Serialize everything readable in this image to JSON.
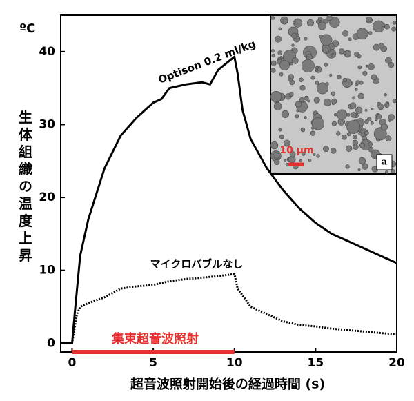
{
  "chart_data": {
    "type": "line",
    "y_unit_label": "ºC",
    "ylabel": "生体組織の温度上昇",
    "xlabel": "超音波照射開始後の経過時間 (s)",
    "xlim": [
      -0.7,
      20
    ],
    "ylim": [
      -1.2,
      45
    ],
    "xticks": [
      0,
      5,
      10,
      15,
      20
    ],
    "yticks": [
      0,
      10,
      20,
      30,
      40
    ],
    "grid": false,
    "series": [
      {
        "name": "Optison 0.2 ml/kg",
        "color": "#000000",
        "style": "solid",
        "x": [
          -0.7,
          0,
          0.2,
          0.5,
          1,
          2,
          3,
          4,
          5,
          5.5,
          6,
          7,
          8,
          8.5,
          9,
          10,
          10.2,
          10.5,
          11,
          12,
          13,
          14,
          15,
          16,
          17,
          18,
          19,
          20
        ],
        "values": [
          0,
          0,
          5,
          12,
          17,
          24,
          28.5,
          31,
          33,
          33.5,
          35,
          35.5,
          35.8,
          35.5,
          37.5,
          39.3,
          37,
          32,
          28,
          24,
          21,
          18.5,
          16.5,
          15,
          14,
          13,
          12,
          11
        ]
      },
      {
        "name": "マイクロバブルなし",
        "color": "#000000",
        "style": "dotted",
        "x": [
          -0.7,
          0,
          0.3,
          0.5,
          1,
          2,
          3,
          4,
          5,
          6,
          7,
          8,
          9,
          10,
          10.2,
          11,
          12,
          13,
          14,
          15,
          16,
          18,
          20
        ],
        "values": [
          0,
          0,
          4,
          5,
          5.5,
          6.3,
          7.5,
          7.8,
          8,
          8.5,
          8.8,
          9,
          9.2,
          9.5,
          7.5,
          5,
          4,
          3,
          2.5,
          2.3,
          2,
          1.6,
          1.2
        ]
      }
    ],
    "annotations": [
      {
        "text": "集束超音波照射",
        "x": [
          0,
          10
        ],
        "color": "#e8312f"
      }
    ],
    "inset": {
      "scale_label": "10 μm",
      "panel_label": "a"
    }
  }
}
